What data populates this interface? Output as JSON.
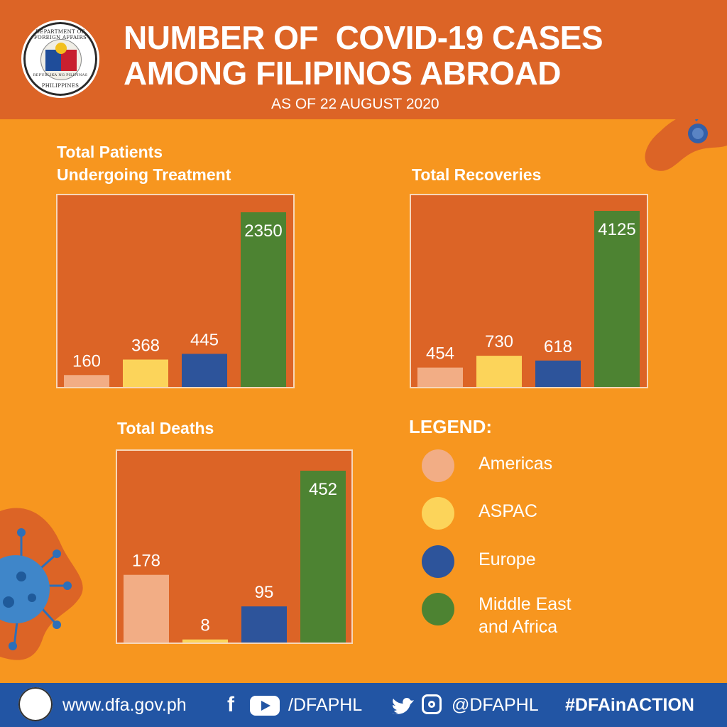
{
  "header": {
    "seal_text_top": "DEPARTMENT OF FOREIGN AFFAIRS",
    "seal_text_bottom": "PHILIPPINES",
    "seal_text_center": "REPUBLIKA NG PILIPINAS",
    "title_line1": "NUMBER OF  COVID-19 CASES",
    "title_line2": "AMONG FILIPINOS ABROAD",
    "subtitle": "AS OF 22 AUGUST 2020"
  },
  "colors": {
    "background": "#f7961f",
    "panel": "#dc6426",
    "Americas": "#f2ad85",
    "ASPAC": "#fcd45a",
    "Europe": "#2d549b",
    "Middle East and Africa": "#4d8332",
    "footer": "#2255a4"
  },
  "chart_data": [
    {
      "type": "bar",
      "title_line1": "Total Patients",
      "title_line2": "Undergoing Treatment",
      "categories": [
        "Americas",
        "ASPAC",
        "Europe",
        "Middle East and Africa"
      ],
      "values": [
        160,
        368,
        445,
        2350
      ],
      "data_labels": [
        "160",
        "368",
        "445",
        "2350"
      ]
    },
    {
      "type": "bar",
      "title_line1": "Total Recoveries",
      "title_line2": "",
      "categories": [
        "Americas",
        "ASPAC",
        "Europe",
        "Middle East and Africa"
      ],
      "values": [
        454,
        730,
        618,
        4125
      ],
      "data_labels": [
        "454",
        "730",
        "618",
        "4125"
      ]
    },
    {
      "type": "bar",
      "title_line1": "Total Deaths",
      "title_line2": "",
      "categories": [
        "Americas",
        "ASPAC",
        "Europe",
        "Middle East and Africa"
      ],
      "values": [
        178,
        8,
        95,
        452
      ],
      "data_labels": [
        "178",
        "8",
        "95",
        "452"
      ]
    }
  ],
  "legend": {
    "title": "LEGEND:",
    "items": [
      {
        "label": "Americas"
      },
      {
        "label": "ASPAC"
      },
      {
        "label": "Europe"
      },
      {
        "label_line1": "Middle East",
        "label_line2": "and Africa"
      }
    ]
  },
  "footer": {
    "website": "www.dfa.gov.ph",
    "facebook_icon": "f",
    "social_handle_1": "/DFAPHL",
    "social_handle_2": "@DFAPHL",
    "hashtag": "#DFAinACTION"
  }
}
